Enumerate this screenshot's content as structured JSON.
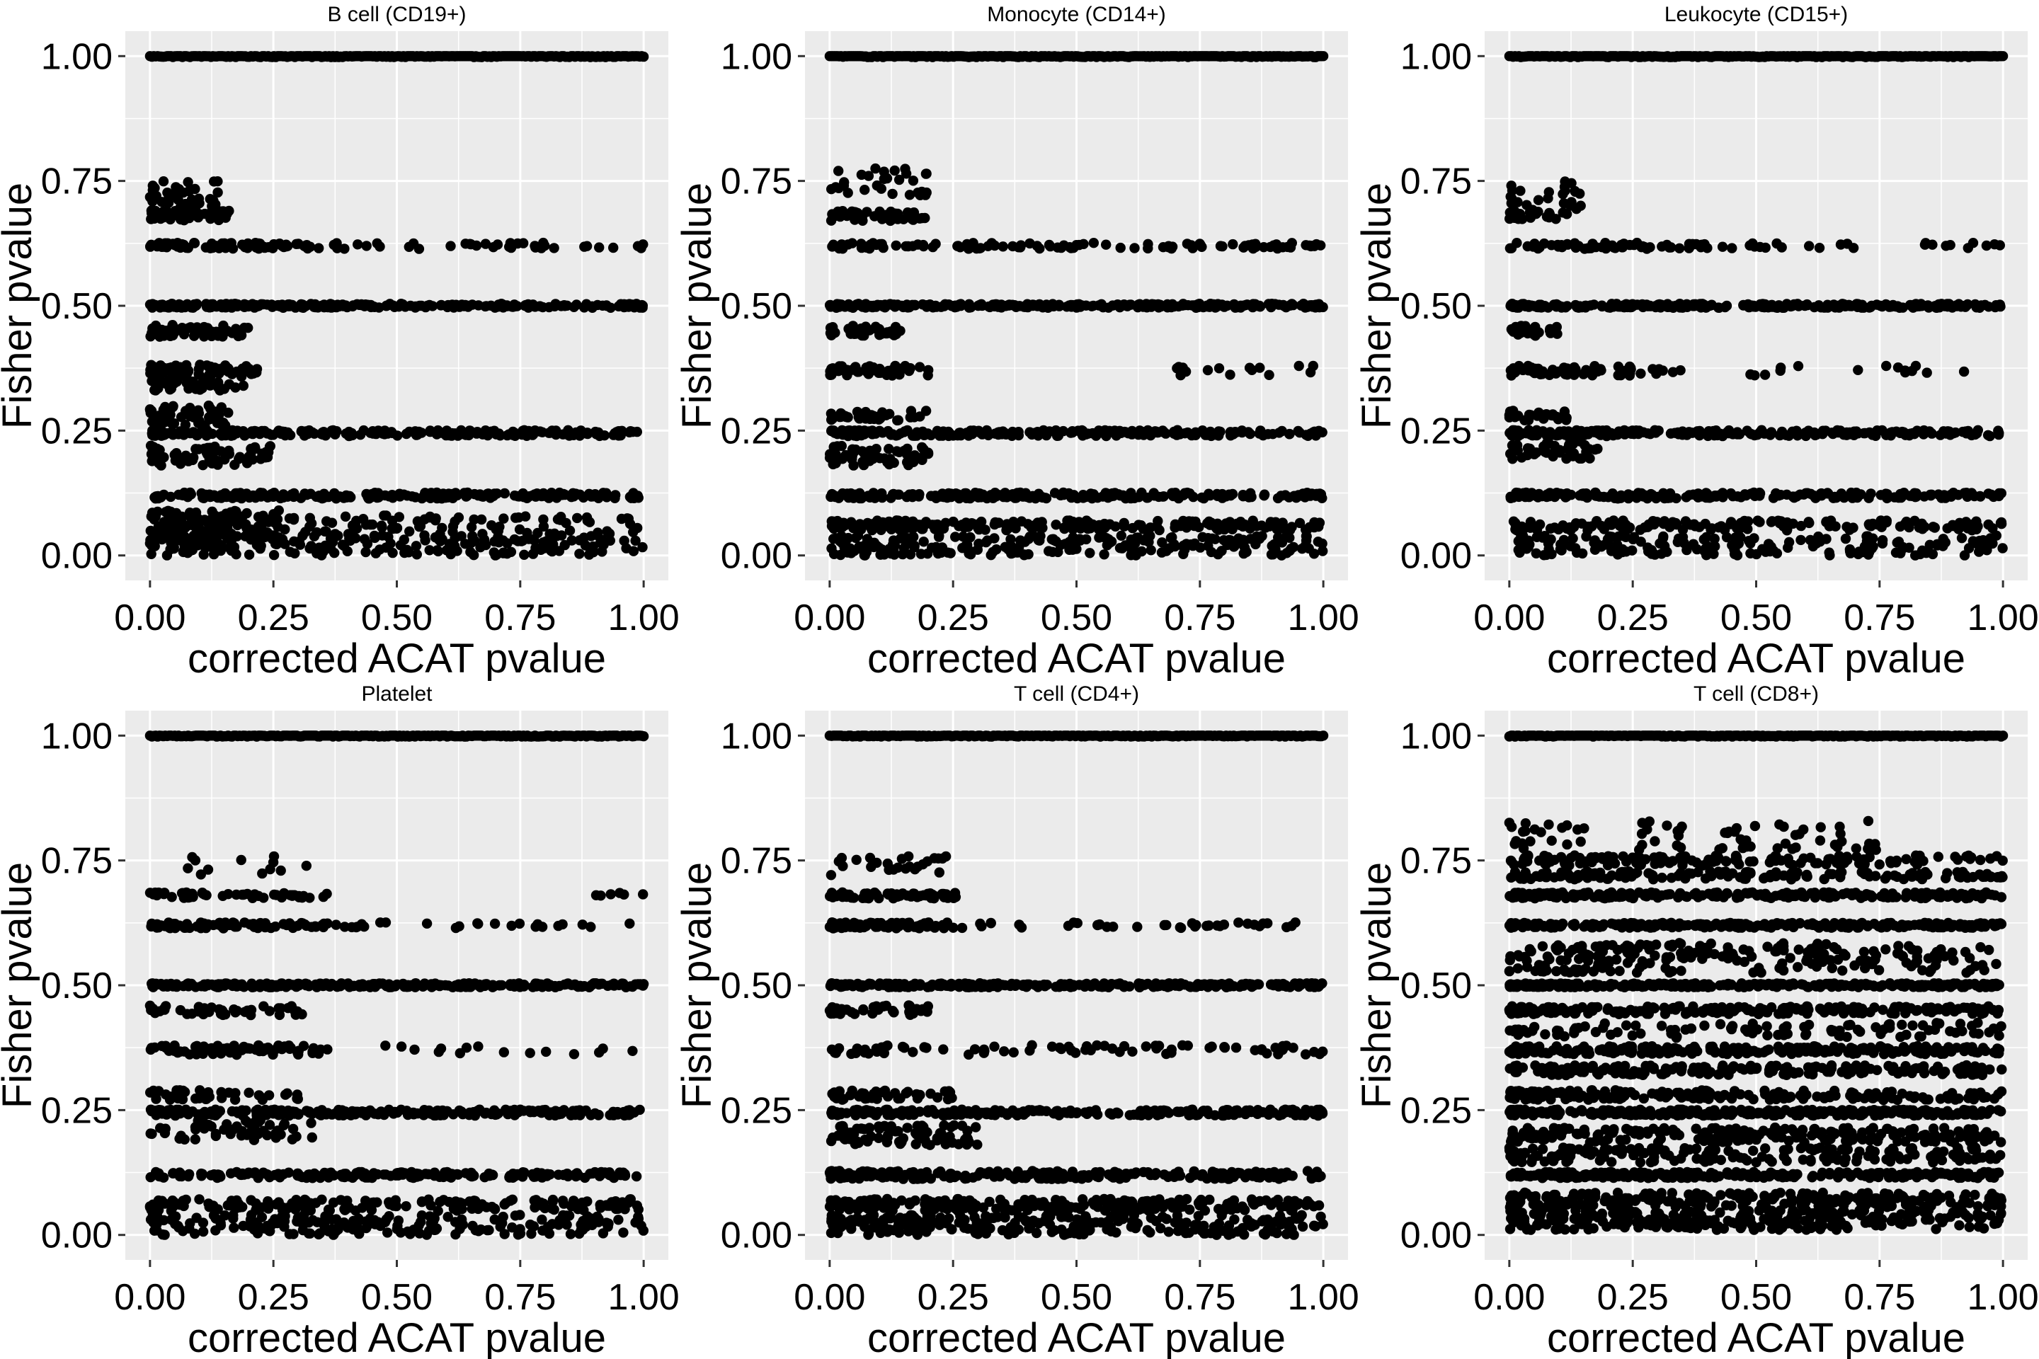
{
  "figure": {
    "panel_background": "#EBEBEB",
    "grid_color": "#FFFFFF",
    "point_color": "#000000",
    "x_ticks": [
      "0.00",
      "0.25",
      "0.50",
      "0.75",
      "1.00"
    ],
    "y_ticks": [
      "0.00",
      "0.25",
      "0.50",
      "0.75",
      "1.00"
    ]
  },
  "chart_data": [
    {
      "type": "scatter",
      "title": "B cell (CD19+)",
      "xlabel": "corrected ACAT pvalue",
      "ylabel": "Fisher pvalue",
      "xlim": [
        -0.05,
        1.05
      ],
      "ylim": [
        -0.05,
        1.05
      ],
      "grid": true,
      "series": [
        {
          "bands": [
            {
              "y": 1.0,
              "x_min": 0.0,
              "x_max": 1.0,
              "n": 260,
              "jitter": 0.002
            },
            {
              "y": 0.72,
              "x_min": 0.0,
              "x_max": 0.14,
              "n": 45,
              "jitter": 0.03
            },
            {
              "y": 0.68,
              "x_min": 0.0,
              "x_max": 0.16,
              "n": 50,
              "jitter": 0.01
            },
            {
              "y": 0.62,
              "x_min": 0.0,
              "x_max": 0.3,
              "n": 70,
              "jitter": 0.006
            },
            {
              "y": 0.62,
              "x_min": 0.3,
              "x_max": 1.0,
              "n": 45,
              "jitter": 0.006
            },
            {
              "y": 0.5,
              "x_min": 0.0,
              "x_max": 1.0,
              "n": 280,
              "jitter": 0.004
            },
            {
              "y": 0.45,
              "x_min": 0.0,
              "x_max": 0.2,
              "n": 55,
              "jitter": 0.012
            },
            {
              "y": 0.37,
              "x_min": 0.0,
              "x_max": 0.22,
              "n": 70,
              "jitter": 0.012
            },
            {
              "y": 0.34,
              "x_min": 0.0,
              "x_max": 0.2,
              "n": 40,
              "jitter": 0.01
            },
            {
              "y": 0.28,
              "x_min": 0.0,
              "x_max": 0.16,
              "n": 60,
              "jitter": 0.02
            },
            {
              "y": 0.245,
              "x_min": 0.0,
              "x_max": 1.0,
              "n": 230,
              "jitter": 0.006
            },
            {
              "y": 0.2,
              "x_min": 0.0,
              "x_max": 0.25,
              "n": 70,
              "jitter": 0.02
            },
            {
              "y": 0.12,
              "x_min": 0.0,
              "x_max": 1.0,
              "n": 230,
              "jitter": 0.006
            },
            {
              "y": 0.06,
              "x_min": 0.0,
              "x_max": 0.28,
              "n": 140,
              "jitter": 0.03
            },
            {
              "y": 0.06,
              "x_min": 0.28,
              "x_max": 1.0,
              "n": 90,
              "jitter": 0.02
            },
            {
              "y": 0.02,
              "x_min": 0.0,
              "x_max": 1.0,
              "n": 200,
              "jitter": 0.02
            }
          ]
        }
      ]
    },
    {
      "type": "scatter",
      "title": "Monocyte (CD14+)",
      "xlabel": "corrected ACAT pvalue",
      "ylabel": "Fisher pvalue",
      "xlim": [
        -0.05,
        1.05
      ],
      "ylim": [
        -0.05,
        1.05
      ],
      "grid": true,
      "series": [
        {
          "bands": [
            {
              "y": 1.0,
              "x_min": 0.0,
              "x_max": 1.0,
              "n": 260,
              "jitter": 0.002
            },
            {
              "y": 0.75,
              "x_min": 0.0,
              "x_max": 0.2,
              "n": 30,
              "jitter": 0.03
            },
            {
              "y": 0.68,
              "x_min": 0.0,
              "x_max": 0.2,
              "n": 40,
              "jitter": 0.01
            },
            {
              "y": 0.62,
              "x_min": 0.0,
              "x_max": 1.0,
              "n": 110,
              "jitter": 0.006
            },
            {
              "y": 0.5,
              "x_min": 0.0,
              "x_max": 1.0,
              "n": 280,
              "jitter": 0.004
            },
            {
              "y": 0.45,
              "x_min": 0.0,
              "x_max": 0.15,
              "n": 40,
              "jitter": 0.01
            },
            {
              "y": 0.37,
              "x_min": 0.0,
              "x_max": 0.2,
              "n": 60,
              "jitter": 0.01
            },
            {
              "y": 0.37,
              "x_min": 0.7,
              "x_max": 1.0,
              "n": 15,
              "jitter": 0.01
            },
            {
              "y": 0.28,
              "x_min": 0.0,
              "x_max": 0.2,
              "n": 40,
              "jitter": 0.01
            },
            {
              "y": 0.245,
              "x_min": 0.0,
              "x_max": 1.0,
              "n": 230,
              "jitter": 0.006
            },
            {
              "y": 0.2,
              "x_min": 0.0,
              "x_max": 0.2,
              "n": 60,
              "jitter": 0.02
            },
            {
              "y": 0.12,
              "x_min": 0.0,
              "x_max": 1.0,
              "n": 230,
              "jitter": 0.006
            },
            {
              "y": 0.06,
              "x_min": 0.0,
              "x_max": 1.0,
              "n": 200,
              "jitter": 0.01
            },
            {
              "y": 0.02,
              "x_min": 0.0,
              "x_max": 1.0,
              "n": 220,
              "jitter": 0.02
            }
          ]
        }
      ]
    },
    {
      "type": "scatter",
      "title": "Leukocyte (CD15+)",
      "xlabel": "corrected ACAT pvalue",
      "ylabel": "Fisher pvalue",
      "xlim": [
        -0.05,
        1.05
      ],
      "ylim": [
        -0.05,
        1.05
      ],
      "grid": true,
      "series": [
        {
          "bands": [
            {
              "y": 1.0,
              "x_min": 0.0,
              "x_max": 1.0,
              "n": 260,
              "jitter": 0.002
            },
            {
              "y": 0.72,
              "x_min": 0.0,
              "x_max": 0.15,
              "n": 25,
              "jitter": 0.03
            },
            {
              "y": 0.68,
              "x_min": 0.0,
              "x_max": 0.12,
              "n": 25,
              "jitter": 0.01
            },
            {
              "y": 0.62,
              "x_min": 0.0,
              "x_max": 0.4,
              "n": 60,
              "jitter": 0.006
            },
            {
              "y": 0.62,
              "x_min": 0.4,
              "x_max": 1.0,
              "n": 25,
              "jitter": 0.006
            },
            {
              "y": 0.5,
              "x_min": 0.0,
              "x_max": 1.0,
              "n": 280,
              "jitter": 0.004
            },
            {
              "y": 0.45,
              "x_min": 0.0,
              "x_max": 0.12,
              "n": 20,
              "jitter": 0.01
            },
            {
              "y": 0.37,
              "x_min": 0.0,
              "x_max": 0.35,
              "n": 60,
              "jitter": 0.01
            },
            {
              "y": 0.37,
              "x_min": 0.35,
              "x_max": 1.0,
              "n": 15,
              "jitter": 0.01
            },
            {
              "y": 0.28,
              "x_min": 0.0,
              "x_max": 0.12,
              "n": 25,
              "jitter": 0.01
            },
            {
              "y": 0.245,
              "x_min": 0.0,
              "x_max": 1.0,
              "n": 230,
              "jitter": 0.006
            },
            {
              "y": 0.21,
              "x_min": 0.0,
              "x_max": 0.2,
              "n": 40,
              "jitter": 0.02
            },
            {
              "y": 0.12,
              "x_min": 0.0,
              "x_max": 1.0,
              "n": 230,
              "jitter": 0.006
            },
            {
              "y": 0.06,
              "x_min": 0.0,
              "x_max": 1.0,
              "n": 150,
              "jitter": 0.01
            },
            {
              "y": 0.02,
              "x_min": 0.0,
              "x_max": 1.0,
              "n": 180,
              "jitter": 0.02
            }
          ]
        }
      ]
    },
    {
      "type": "scatter",
      "title": "Platelet",
      "xlabel": "corrected ACAT pvalue",
      "ylabel": "Fisher pvalue",
      "xlim": [
        -0.05,
        1.05
      ],
      "ylim": [
        -0.05,
        1.05
      ],
      "grid": true,
      "series": [
        {
          "bands": [
            {
              "y": 1.0,
              "x_min": 0.0,
              "x_max": 1.0,
              "n": 260,
              "jitter": 0.002
            },
            {
              "y": 0.74,
              "x_min": 0.0,
              "x_max": 0.35,
              "n": 12,
              "jitter": 0.02
            },
            {
              "y": 0.68,
              "x_min": 0.0,
              "x_max": 0.36,
              "n": 50,
              "jitter": 0.006
            },
            {
              "y": 0.68,
              "x_min": 0.9,
              "x_max": 1.0,
              "n": 6,
              "jitter": 0.006
            },
            {
              "y": 0.62,
              "x_min": 0.0,
              "x_max": 0.37,
              "n": 80,
              "jitter": 0.006
            },
            {
              "y": 0.62,
              "x_min": 0.37,
              "x_max": 1.0,
              "n": 25,
              "jitter": 0.006
            },
            {
              "y": 0.5,
              "x_min": 0.0,
              "x_max": 1.0,
              "n": 280,
              "jitter": 0.004
            },
            {
              "y": 0.45,
              "x_min": 0.0,
              "x_max": 0.32,
              "n": 45,
              "jitter": 0.01
            },
            {
              "y": 0.37,
              "x_min": 0.0,
              "x_max": 0.37,
              "n": 70,
              "jitter": 0.01
            },
            {
              "y": 0.37,
              "x_min": 0.37,
              "x_max": 1.0,
              "n": 15,
              "jitter": 0.01
            },
            {
              "y": 0.28,
              "x_min": 0.0,
              "x_max": 0.3,
              "n": 40,
              "jitter": 0.01
            },
            {
              "y": 0.245,
              "x_min": 0.0,
              "x_max": 1.0,
              "n": 230,
              "jitter": 0.006
            },
            {
              "y": 0.21,
              "x_min": 0.0,
              "x_max": 0.33,
              "n": 50,
              "jitter": 0.02
            },
            {
              "y": 0.12,
              "x_min": 0.0,
              "x_max": 1.0,
              "n": 200,
              "jitter": 0.006
            },
            {
              "y": 0.06,
              "x_min": 0.0,
              "x_max": 1.0,
              "n": 160,
              "jitter": 0.012
            },
            {
              "y": 0.02,
              "x_min": 0.0,
              "x_max": 1.0,
              "n": 200,
              "jitter": 0.02
            }
          ]
        }
      ]
    },
    {
      "type": "scatter",
      "title": "T cell (CD4+)",
      "xlabel": "corrected ACAT pvalue",
      "ylabel": "Fisher pvalue",
      "xlim": [
        -0.05,
        1.05
      ],
      "ylim": [
        -0.05,
        1.05
      ],
      "grid": true,
      "series": [
        {
          "bands": [
            {
              "y": 1.0,
              "x_min": 0.0,
              "x_max": 1.0,
              "n": 260,
              "jitter": 0.002
            },
            {
              "y": 0.74,
              "x_min": 0.0,
              "x_max": 0.25,
              "n": 25,
              "jitter": 0.02
            },
            {
              "y": 0.68,
              "x_min": 0.0,
              "x_max": 0.26,
              "n": 60,
              "jitter": 0.006
            },
            {
              "y": 0.62,
              "x_min": 0.0,
              "x_max": 0.27,
              "n": 80,
              "jitter": 0.006
            },
            {
              "y": 0.62,
              "x_min": 0.27,
              "x_max": 1.0,
              "n": 35,
              "jitter": 0.006
            },
            {
              "y": 0.5,
              "x_min": 0.0,
              "x_max": 1.0,
              "n": 280,
              "jitter": 0.004
            },
            {
              "y": 0.45,
              "x_min": 0.0,
              "x_max": 0.2,
              "n": 35,
              "jitter": 0.01
            },
            {
              "y": 0.37,
              "x_min": 0.0,
              "x_max": 1.0,
              "n": 80,
              "jitter": 0.01
            },
            {
              "y": 0.28,
              "x_min": 0.0,
              "x_max": 0.25,
              "n": 40,
              "jitter": 0.01
            },
            {
              "y": 0.245,
              "x_min": 0.0,
              "x_max": 1.0,
              "n": 230,
              "jitter": 0.006
            },
            {
              "y": 0.2,
              "x_min": 0.0,
              "x_max": 0.3,
              "n": 80,
              "jitter": 0.02
            },
            {
              "y": 0.12,
              "x_min": 0.0,
              "x_max": 1.0,
              "n": 240,
              "jitter": 0.008
            },
            {
              "y": 0.06,
              "x_min": 0.0,
              "x_max": 1.0,
              "n": 230,
              "jitter": 0.012
            },
            {
              "y": 0.02,
              "x_min": 0.0,
              "x_max": 1.0,
              "n": 260,
              "jitter": 0.02
            }
          ]
        }
      ]
    },
    {
      "type": "scatter",
      "title": "T cell (CD8+)",
      "xlabel": "corrected ACAT pvalue",
      "ylabel": "Fisher pvalue",
      "xlim": [
        -0.05,
        1.05
      ],
      "ylim": [
        -0.05,
        1.05
      ],
      "grid": true,
      "series": [
        {
          "bands": [
            {
              "y": 1.0,
              "x_min": 0.0,
              "x_max": 1.0,
              "n": 260,
              "jitter": 0.002
            },
            {
              "y": 0.8,
              "x_min": 0.0,
              "x_max": 0.75,
              "n": 70,
              "jitter": 0.03
            },
            {
              "y": 0.75,
              "x_min": 0.0,
              "x_max": 1.0,
              "n": 140,
              "jitter": 0.01
            },
            {
              "y": 0.72,
              "x_min": 0.0,
              "x_max": 1.0,
              "n": 160,
              "jitter": 0.008
            },
            {
              "y": 0.68,
              "x_min": 0.0,
              "x_max": 1.0,
              "n": 240,
              "jitter": 0.006
            },
            {
              "y": 0.62,
              "x_min": 0.0,
              "x_max": 1.0,
              "n": 260,
              "jitter": 0.005
            },
            {
              "y": 0.57,
              "x_min": 0.0,
              "x_max": 1.0,
              "n": 120,
              "jitter": 0.015
            },
            {
              "y": 0.54,
              "x_min": 0.0,
              "x_max": 1.0,
              "n": 100,
              "jitter": 0.015
            },
            {
              "y": 0.5,
              "x_min": 0.0,
              "x_max": 1.0,
              "n": 280,
              "jitter": 0.004
            },
            {
              "y": 0.45,
              "x_min": 0.0,
              "x_max": 1.0,
              "n": 220,
              "jitter": 0.008
            },
            {
              "y": 0.41,
              "x_min": 0.0,
              "x_max": 1.0,
              "n": 100,
              "jitter": 0.015
            },
            {
              "y": 0.37,
              "x_min": 0.0,
              "x_max": 1.0,
              "n": 250,
              "jitter": 0.008
            },
            {
              "y": 0.33,
              "x_min": 0.0,
              "x_max": 1.0,
              "n": 180,
              "jitter": 0.01
            },
            {
              "y": 0.28,
              "x_min": 0.0,
              "x_max": 1.0,
              "n": 180,
              "jitter": 0.01
            },
            {
              "y": 0.245,
              "x_min": 0.0,
              "x_max": 1.0,
              "n": 280,
              "jitter": 0.006
            },
            {
              "y": 0.2,
              "x_min": 0.0,
              "x_max": 1.0,
              "n": 220,
              "jitter": 0.015
            },
            {
              "y": 0.16,
              "x_min": 0.0,
              "x_max": 1.0,
              "n": 180,
              "jitter": 0.015
            },
            {
              "y": 0.12,
              "x_min": 0.0,
              "x_max": 1.0,
              "n": 280,
              "jitter": 0.006
            },
            {
              "y": 0.07,
              "x_min": 0.0,
              "x_max": 1.0,
              "n": 250,
              "jitter": 0.015
            },
            {
              "y": 0.03,
              "x_min": 0.0,
              "x_max": 1.0,
              "n": 300,
              "jitter": 0.02
            }
          ]
        }
      ]
    }
  ]
}
